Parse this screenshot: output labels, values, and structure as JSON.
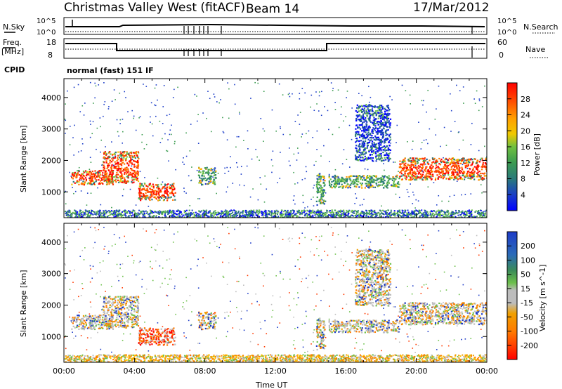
{
  "header": {
    "title": "Christmas Valley West (fitACF)",
    "beam": "Beam 14",
    "date": "17/Mar/2012"
  },
  "top_panels": {
    "nsky_label": "N.Sky",
    "nsearch_label": "N.Search",
    "nsky_ticks": [
      "10^5",
      "10^0"
    ],
    "nsearch_ticks": [
      "10^5",
      "10^0"
    ],
    "freq_label_1": "Freq.",
    "freq_label_2": "[MHz]",
    "freq_ticks": [
      "18",
      "8"
    ],
    "nave_label": "Nave",
    "nave_ticks": [
      "60",
      "0"
    ],
    "cpid_label": "CPID",
    "cpid_value": "normal (fast) 151 IF"
  },
  "chart_data": [
    {
      "type": "heatmap",
      "name": "power",
      "xlabel": "",
      "ylabel": "Slant Range [km]",
      "xlim_hours": [
        0,
        24
      ],
      "ylim_km": [
        180,
        4600
      ],
      "yticks": [
        "1000",
        "2000",
        "3000",
        "4000"
      ],
      "colorbar": {
        "label": "Power [dB]",
        "ticks": [
          "4",
          "8",
          "12",
          "16",
          "20",
          "24",
          "28"
        ],
        "colors": [
          "#0000ff",
          "#2a5ab8",
          "#1e7a6e",
          "#3c9c50",
          "#6cc04a",
          "#f0c800",
          "#ff9a00",
          "#ff5a00",
          "#ff0000"
        ]
      },
      "regions_description_free": true,
      "bands": [
        {
          "hour_start": 0.4,
          "hour_end": 2.8,
          "range_start_km": 1250,
          "range_end_km": 1700,
          "level": "high"
        },
        {
          "hour_start": 2.2,
          "hour_end": 4.2,
          "range_start_km": 1300,
          "range_end_km": 2300,
          "level": "high"
        },
        {
          "hour_start": 4.2,
          "hour_end": 6.3,
          "range_start_km": 750,
          "range_end_km": 1300,
          "level": "high"
        },
        {
          "hour_start": 7.6,
          "hour_end": 8.6,
          "range_start_km": 1250,
          "range_end_km": 1800,
          "level": "medium"
        },
        {
          "hour_start": 14.3,
          "hour_end": 14.8,
          "range_start_km": 600,
          "range_end_km": 1600,
          "level": "medium"
        },
        {
          "hour_start": 15.0,
          "hour_end": 19.0,
          "range_start_km": 1150,
          "range_end_km": 1550,
          "level": "medium"
        },
        {
          "hour_start": 19.0,
          "hour_end": 24.0,
          "range_start_km": 1400,
          "range_end_km": 2100,
          "level": "high"
        },
        {
          "hour_start": 16.5,
          "hour_end": 18.5,
          "range_start_km": 2000,
          "range_end_km": 3800,
          "level": "low"
        }
      ]
    },
    {
      "type": "heatmap",
      "name": "velocity",
      "xlabel": "Time UT",
      "ylabel": "Slant Range [km]",
      "xlim_hours": [
        0,
        24
      ],
      "ylim_km": [
        180,
        4600
      ],
      "xticks": [
        "00:00",
        "04:00",
        "08:00",
        "12:00",
        "16:00",
        "20:00",
        "00:00"
      ],
      "yticks": [
        "1000",
        "2000",
        "3000",
        "4000"
      ],
      "colorbar": {
        "label": "Velocity [m s^-1]",
        "ticks": [
          "200",
          "100",
          "50",
          "15",
          "-15",
          "-50",
          "-100",
          "-200"
        ],
        "colors": [
          "#1e3cc8",
          "#2a6ab8",
          "#3a8a5a",
          "#6cc04a",
          "#bdbdbd",
          "#f0a000",
          "#ff7a00",
          "#ff3a00",
          "#ff0000"
        ]
      }
    }
  ]
}
